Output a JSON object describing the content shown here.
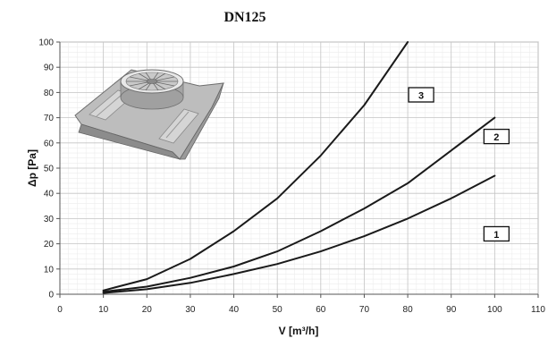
{
  "chart_data": {
    "type": "line",
    "title": "DN125",
    "xlabel": "V [m³/h]",
    "ylabel": "Δp [Pa]",
    "xlim": [
      0,
      110
    ],
    "ylim": [
      0,
      100
    ],
    "xticks": [
      0,
      10,
      20,
      30,
      40,
      50,
      60,
      70,
      80,
      90,
      100,
      110
    ],
    "yticks": [
      0,
      10,
      20,
      30,
      40,
      50,
      60,
      70,
      80,
      90,
      100
    ],
    "grid": true,
    "legend": "inline labels",
    "line_color": "#1a1a1a",
    "series": [
      {
        "name": "1",
        "x": [
          10,
          20,
          30,
          40,
          50,
          60,
          70,
          80,
          90,
          100
        ],
        "y": [
          0.5,
          2,
          4.5,
          8,
          12,
          17,
          23,
          30,
          38,
          47
        ]
      },
      {
        "name": "2",
        "x": [
          10,
          20,
          30,
          40,
          50,
          60,
          70,
          80,
          90,
          100
        ],
        "y": [
          1,
          3,
          6.5,
          11,
          17,
          25,
          34,
          44,
          57,
          70
        ]
      },
      {
        "name": "3",
        "x": [
          10,
          20,
          30,
          40,
          50,
          60,
          70,
          80
        ],
        "y": [
          1.5,
          6,
          14,
          25,
          38,
          55,
          75,
          100
        ]
      }
    ]
  }
}
